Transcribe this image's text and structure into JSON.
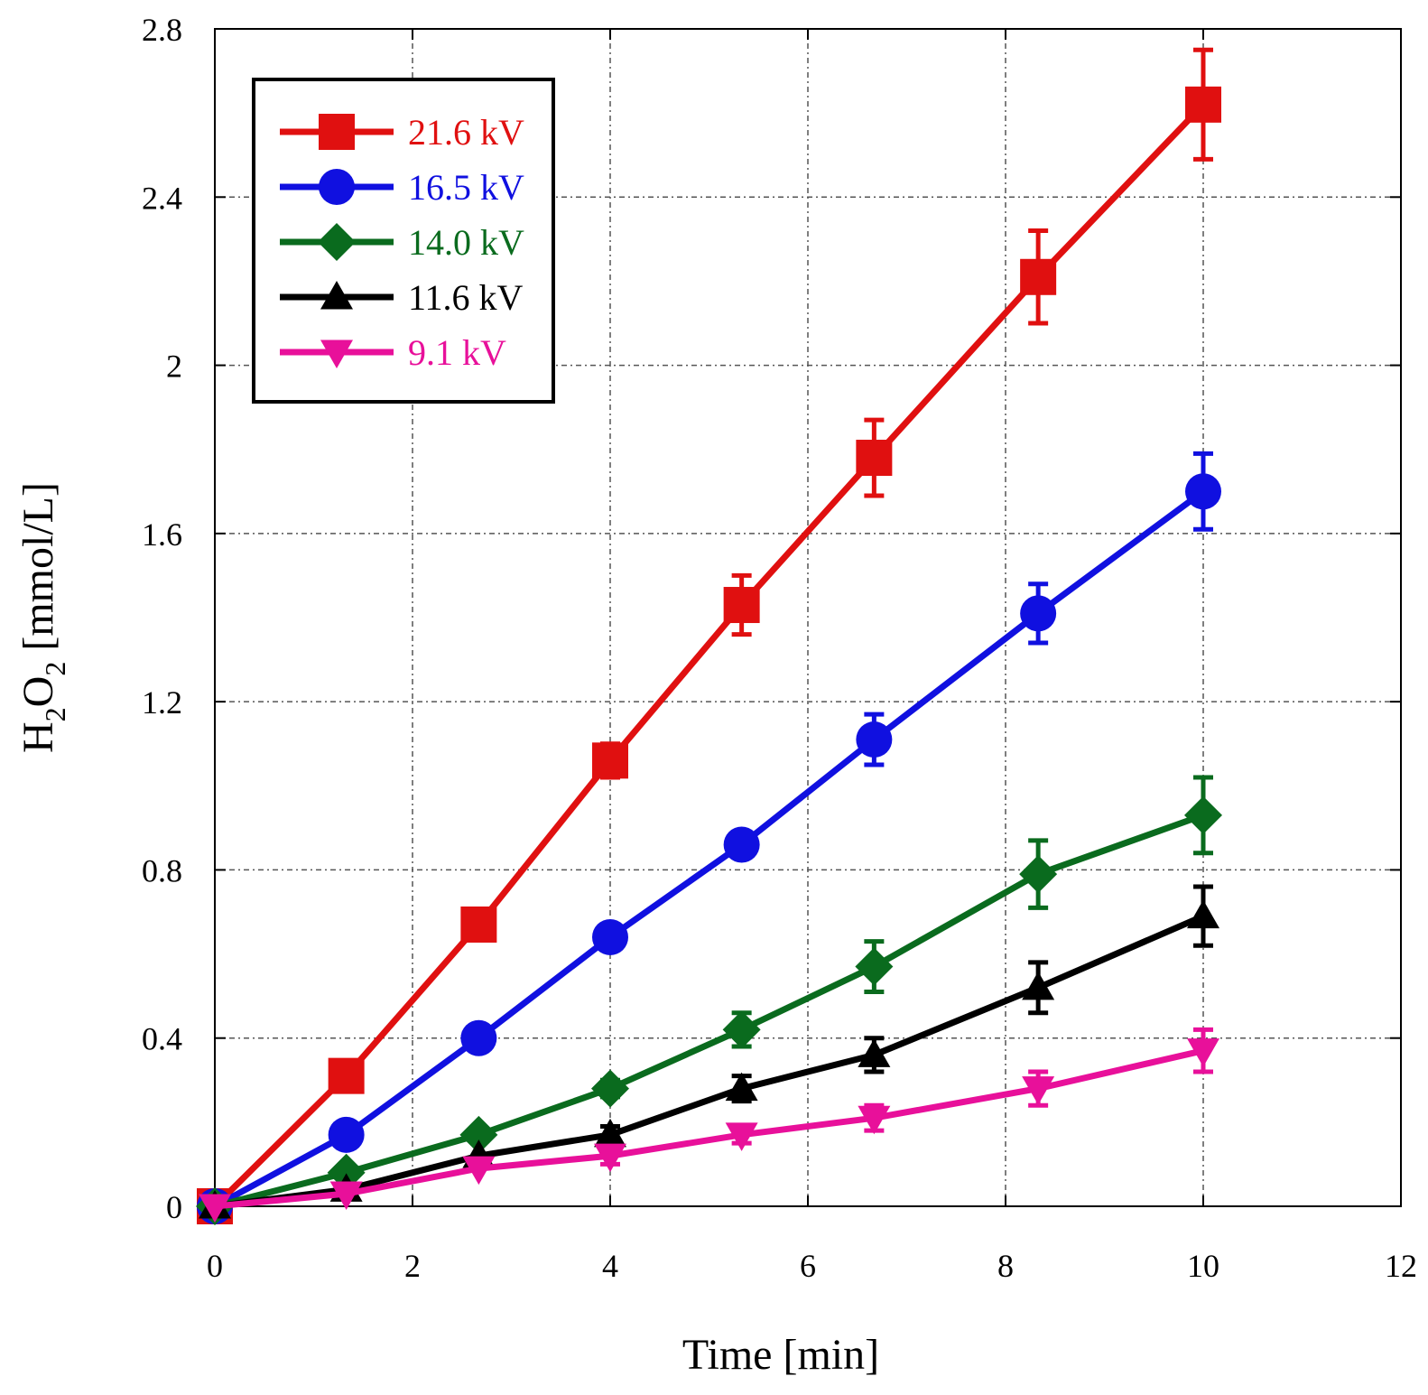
{
  "chart_data": {
    "type": "line",
    "title": "",
    "xlabel": "Time [min]",
    "ylabel": {
      "base": "H",
      "sub1": "2",
      "mid": "O",
      "sub2": "2",
      "unit": " [mmol/L]"
    },
    "xlim": [
      0,
      12
    ],
    "ylim": [
      0,
      2.8
    ],
    "xticks": [
      0,
      2,
      4,
      6,
      8,
      10,
      12
    ],
    "yticks": [
      0,
      0.4,
      0.8,
      1.2,
      1.6,
      2.0,
      2.4,
      2.8
    ],
    "xtick_labels": [
      "0",
      "2",
      "4",
      "6",
      "8",
      "10",
      "12"
    ],
    "ytick_labels": [
      "0",
      "0.4",
      "0.8",
      "1.2",
      "1.6",
      "2",
      "2.4",
      "2.8"
    ],
    "grid": true,
    "legend_position": "top-left",
    "x": [
      0,
      1.33,
      2.67,
      4.0,
      5.33,
      6.67,
      8.33,
      10.0
    ],
    "series": [
      {
        "name": "21.6 kV",
        "color": "#e01010",
        "marker": "square",
        "values": [
          0.0,
          0.31,
          0.67,
          1.06,
          1.43,
          1.78,
          2.21,
          2.62
        ],
        "errors": [
          0.0,
          0.0,
          0.0,
          0.04,
          0.07,
          0.09,
          0.11,
          0.13
        ]
      },
      {
        "name": "16.5 kV",
        "color": "#1010e0",
        "marker": "circle",
        "values": [
          0.0,
          0.17,
          0.4,
          0.64,
          0.86,
          1.11,
          1.41,
          1.7
        ],
        "errors": [
          0.0,
          0.0,
          0.0,
          0.0,
          0.03,
          0.06,
          0.07,
          0.09
        ]
      },
      {
        "name": "14.0 kV",
        "color": "#0a6b1e",
        "marker": "diamond",
        "values": [
          0.0,
          0.08,
          0.17,
          0.28,
          0.42,
          0.57,
          0.79,
          0.93
        ],
        "errors": [
          0.0,
          0.0,
          0.0,
          0.02,
          0.04,
          0.06,
          0.08,
          0.09
        ]
      },
      {
        "name": "11.6 kV",
        "color": "#000000",
        "marker": "triangle-up",
        "values": [
          0.0,
          0.04,
          0.12,
          0.17,
          0.28,
          0.36,
          0.52,
          0.69
        ],
        "errors": [
          0.0,
          0.0,
          0.0,
          0.02,
          0.03,
          0.04,
          0.06,
          0.07
        ]
      },
      {
        "name": "9.1 kV",
        "color": "#e8109a",
        "marker": "triangle-down",
        "values": [
          0.0,
          0.03,
          0.09,
          0.12,
          0.17,
          0.21,
          0.28,
          0.37
        ],
        "errors": [
          0.0,
          0.0,
          0.0,
          0.02,
          0.02,
          0.03,
          0.04,
          0.05
        ]
      }
    ]
  }
}
